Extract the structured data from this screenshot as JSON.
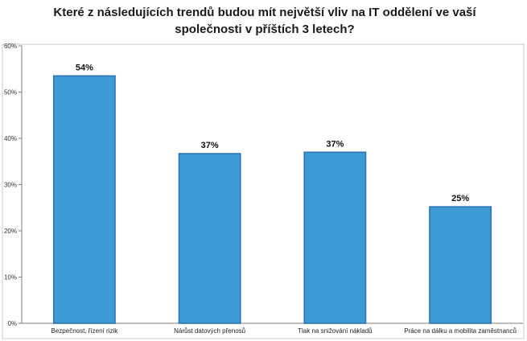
{
  "chart_data": {
    "type": "bar",
    "title": "Které z následujících trendů budou mít největší vliv na IT oddělení ve vaší společnosti v příštích 3 letech?",
    "title_lines": [
      "Které z následujících trendů budou mít největší vliv na IT oddělení ve vaší",
      "společnosti v příštích 3 letech?"
    ],
    "categories": [
      "Bezpečnost, řízení rizik",
      "Nárůst datových přenosů",
      "Tlak na snižování nákladů",
      "Práce na dálku a mobilita zaměstnanců"
    ],
    "values": [
      54,
      37,
      37,
      25
    ],
    "bar_values": [
      53.5,
      36.7,
      37.0,
      25.2
    ],
    "data_labels": [
      "54%",
      "37%",
      "37%",
      "25%"
    ],
    "y_ticks": [
      "0%",
      "10%",
      "20%",
      "30%",
      "40%",
      "50%",
      "60%"
    ],
    "ylim": [
      0,
      60
    ],
    "y_unit": "%",
    "xlabel": "",
    "ylabel": "",
    "grid": false,
    "legend": "none",
    "colors": {
      "bar_fill": "#3e9ad4",
      "bar_stroke": "#2a6fb0",
      "axis": "#7f7f7f",
      "frame": "#c8c8c8"
    }
  }
}
